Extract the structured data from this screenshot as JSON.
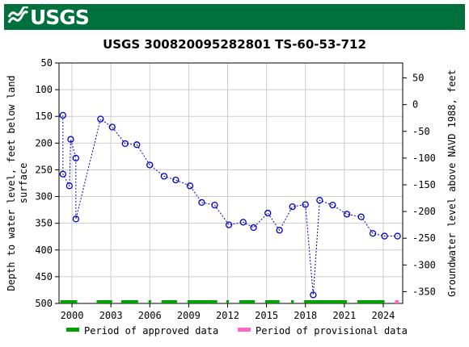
{
  "header": {
    "logo_text": "USGS",
    "brand_color": "#00703c"
  },
  "chart_data": {
    "type": "scatter",
    "title": "USGS 300820095282801 TS-60-53-712",
    "ylabel_left": [
      "Depth to water level, feet below land",
      "surface"
    ],
    "ylabel_right": "Groundwater level above NAVD 1988, feet",
    "ylim_left": [
      500,
      50
    ],
    "ylim_right": [
      -372,
      78
    ],
    "yticks_left": [
      50,
      100,
      150,
      200,
      250,
      300,
      350,
      400,
      450,
      500
    ],
    "yticks_right": [
      50,
      0,
      -50,
      -100,
      -150,
      -200,
      -250,
      -300,
      -350
    ],
    "xlim": [
      1999,
      2025.5
    ],
    "xticks": [
      2000,
      2003,
      2006,
      2009,
      2012,
      2015,
      2018,
      2021,
      2024
    ],
    "grid": true,
    "series": [
      {
        "x": [
          1999.3,
          1999.3,
          1999.8,
          1999.9,
          2000.3,
          2000.3,
          2002.2,
          2003.1,
          2004.1,
          2005.0,
          2006.0,
          2007.1,
          2008.0,
          2009.1,
          2010.0,
          2011.0,
          2012.1,
          2013.2,
          2014.0,
          2015.1,
          2016.0,
          2017.0,
          2018.0,
          2018.6,
          2019.1,
          2020.1,
          2021.2,
          2022.3,
          2023.2,
          2024.1,
          2025.1
        ],
        "y": [
          148,
          258,
          280,
          193,
          228,
          342,
          155,
          170,
          201,
          203,
          241,
          262,
          269,
          280,
          311,
          316,
          353,
          348,
          358,
          331,
          363,
          319,
          315,
          484,
          307,
          316,
          333,
          338,
          369,
          374,
          374
        ],
        "color": "#0000cc"
      }
    ],
    "approved_periods": [
      [
        1999.1,
        2000.4
      ],
      [
        2001.9,
        2003.1
      ],
      [
        2003.8,
        2005.1
      ],
      [
        2005.9,
        2006.1
      ],
      [
        2006.9,
        2008.1
      ],
      [
        2008.9,
        2011.2
      ],
      [
        2011.9,
        2012.1
      ],
      [
        2012.9,
        2014.1
      ],
      [
        2014.9,
        2016.0
      ],
      [
        2016.9,
        2017.1
      ],
      [
        2017.9,
        2021.2
      ],
      [
        2022.0,
        2024.1
      ]
    ],
    "provisional_periods": [
      [
        2024.9,
        2025.2
      ]
    ],
    "approved_color": "#00a000",
    "provisional_color": "#ff66cc",
    "legend": {
      "position": "bottom",
      "items": [
        {
          "label": "Period of approved data",
          "color": "#00a000"
        },
        {
          "label": "Period of provisional data",
          "color": "#ff66cc"
        }
      ]
    }
  }
}
